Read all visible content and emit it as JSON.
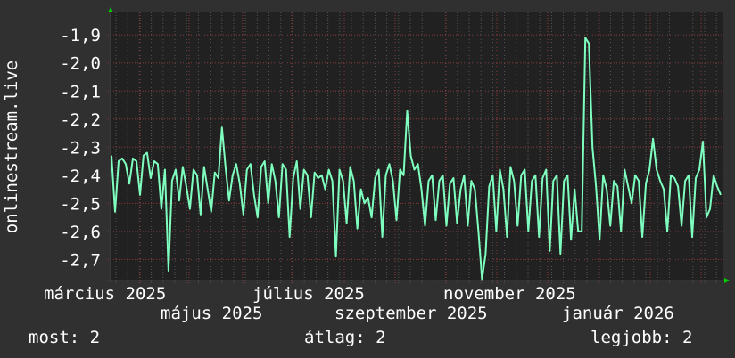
{
  "chart_data": {
    "type": "line",
    "title": "",
    "ylabel": "onlinestream.live",
    "xlabel": "",
    "ylim": [
      -2.775,
      -1.82
    ],
    "yticks": [
      -1.9,
      -2.0,
      -2.1,
      -2.2,
      -2.3,
      -2.4,
      -2.5,
      -2.6,
      -2.7
    ],
    "ytick_labels": [
      "-1,9",
      "-2,0",
      "-2,1",
      "-2,2",
      "-2,3",
      "-2,4",
      "-2,5",
      "-2,6",
      "-2,7"
    ],
    "xtick_labels": [
      "március 2025",
      "május 2025",
      "július 2025",
      "szeptember 2025",
      "november 2025",
      "január 2026"
    ],
    "grid": true,
    "colors": {
      "background": "#303030",
      "plot": "#212121",
      "line": "#7fffbf",
      "major_grid": "#8a3a3a",
      "minor_grid": "#555555",
      "arrow": "#00cc00",
      "text": "#ffffff"
    },
    "series": [
      {
        "values": [
          -2.33,
          -2.53,
          -2.35,
          -2.34,
          -2.36,
          -2.43,
          -2.34,
          -2.35,
          -2.47,
          -2.33,
          -2.32,
          -2.41,
          -2.35,
          -2.36,
          -2.52,
          -2.38,
          -2.74,
          -2.42,
          -2.38,
          -2.49,
          -2.37,
          -2.44,
          -2.52,
          -2.38,
          -2.4,
          -2.54,
          -2.37,
          -2.45,
          -2.53,
          -2.39,
          -2.41,
          -2.23,
          -2.37,
          -2.49,
          -2.4,
          -2.36,
          -2.43,
          -2.54,
          -2.38,
          -2.36,
          -2.47,
          -2.55,
          -2.37,
          -2.35,
          -2.5,
          -2.36,
          -2.42,
          -2.55,
          -2.36,
          -2.38,
          -2.62,
          -2.41,
          -2.35,
          -2.52,
          -2.38,
          -2.4,
          -2.55,
          -2.39,
          -2.41,
          -2.4,
          -2.45,
          -2.38,
          -2.42,
          -2.69,
          -2.38,
          -2.42,
          -2.57,
          -2.37,
          -2.42,
          -2.59,
          -2.45,
          -2.5,
          -2.48,
          -2.55,
          -2.41,
          -2.38,
          -2.62,
          -2.4,
          -2.36,
          -2.42,
          -2.56,
          -2.38,
          -2.4,
          -2.17,
          -2.33,
          -2.38,
          -2.36,
          -2.45,
          -2.58,
          -2.42,
          -2.4,
          -2.56,
          -2.42,
          -2.4,
          -2.58,
          -2.43,
          -2.41,
          -2.57,
          -2.45,
          -2.4,
          -2.58,
          -2.42,
          -2.45,
          -2.6,
          -2.77,
          -2.68,
          -2.44,
          -2.4,
          -2.6,
          -2.38,
          -2.45,
          -2.62,
          -2.37,
          -2.42,
          -2.58,
          -2.4,
          -2.38,
          -2.6,
          -2.42,
          -2.4,
          -2.62,
          -2.41,
          -2.38,
          -2.67,
          -2.42,
          -2.4,
          -2.68,
          -2.42,
          -2.4,
          -2.63,
          -2.45,
          -2.6,
          -2.6,
          -1.91,
          -1.93,
          -2.3,
          -2.44,
          -2.63,
          -2.4,
          -2.45,
          -2.58,
          -2.42,
          -2.44,
          -2.6,
          -2.38,
          -2.44,
          -2.5,
          -2.4,
          -2.42,
          -2.62,
          -2.43,
          -2.38,
          -2.27,
          -2.38,
          -2.42,
          -2.45,
          -2.6,
          -2.4,
          -2.41,
          -2.44,
          -2.58,
          -2.42,
          -2.4,
          -2.62,
          -2.41,
          -2.38,
          -2.28,
          -2.55,
          -2.52,
          -2.4,
          -2.44,
          -2.47
        ]
      }
    ]
  },
  "legend": {
    "current": "most: 2",
    "average": "átlag: 2",
    "best": "legjobb: 2"
  }
}
